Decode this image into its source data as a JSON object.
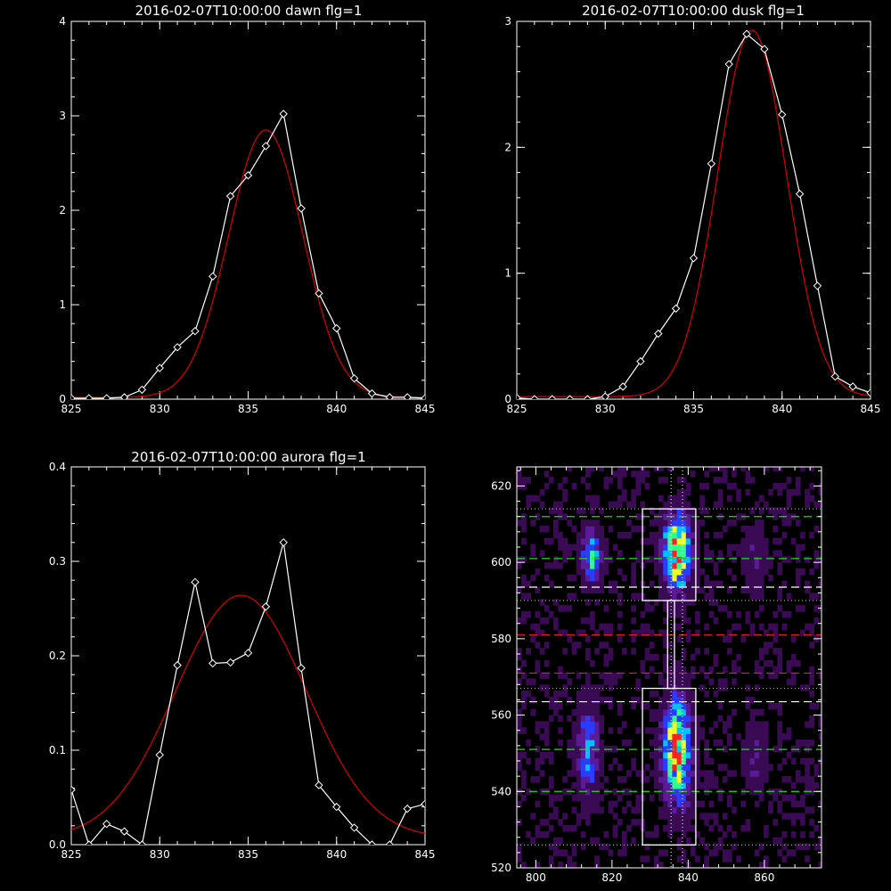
{
  "chart_data": [
    {
      "id": "dawn",
      "type": "line",
      "title": "2016-02-07T10:00:00 dawn flg=1",
      "xlim": [
        825,
        845
      ],
      "ylim": [
        0,
        4
      ],
      "xticks": [
        825,
        830,
        835,
        840,
        845
      ],
      "yticks": [
        0,
        1,
        2,
        3,
        4
      ],
      "series": [
        {
          "style": "observed",
          "color": "#ffffff",
          "marker": "diamond",
          "x": [
            825,
            826,
            827,
            828,
            829,
            830,
            831,
            832,
            833,
            834,
            835,
            836,
            837,
            838,
            839,
            840,
            841,
            842,
            843,
            844,
            845
          ],
          "y": [
            0.01,
            0.01,
            0.01,
            0.02,
            0.1,
            0.33,
            0.55,
            0.72,
            1.3,
            2.15,
            2.37,
            2.68,
            3.02,
            2.02,
            1.12,
            0.75,
            0.22,
            0.06,
            0.02,
            0.02,
            0.01
          ]
        },
        {
          "style": "fit",
          "color": "#cc0000",
          "gaussian": {
            "amp": 2.83,
            "mu": 836.0,
            "sigma": 2.1,
            "offset": 0.02
          }
        }
      ]
    },
    {
      "id": "dusk",
      "type": "line",
      "title": "2016-02-07T10:00:00 dusk flg=1",
      "xlim": [
        825,
        845
      ],
      "ylim": [
        0,
        3
      ],
      "xticks": [
        825,
        830,
        835,
        840,
        845
      ],
      "yticks": [
        0,
        1,
        2,
        3
      ],
      "series": [
        {
          "style": "observed",
          "color": "#ffffff",
          "marker": "diamond",
          "x": [
            825,
            826,
            827,
            828,
            829,
            830,
            831,
            832,
            833,
            834,
            835,
            836,
            837,
            838,
            839,
            840,
            841,
            842,
            843,
            844,
            845
          ],
          "y": [
            0.01,
            0.0,
            0.0,
            0.0,
            0.0,
            0.02,
            0.1,
            0.3,
            0.52,
            0.72,
            1.12,
            1.87,
            2.66,
            2.9,
            2.78,
            2.26,
            1.63,
            0.9,
            0.18,
            0.1,
            0.05
          ]
        },
        {
          "style": "fit",
          "color": "#cc0000",
          "gaussian": {
            "amp": 2.91,
            "mu": 838.3,
            "sigma": 1.95,
            "offset": 0.02
          }
        }
      ]
    },
    {
      "id": "aurora",
      "type": "line",
      "title": "2016-02-07T10:00:00 aurora flg=1",
      "xlim": [
        825,
        845
      ],
      "ylim": [
        0,
        0.4
      ],
      "xticks": [
        825,
        830,
        835,
        840,
        845
      ],
      "yticks": [
        0.0,
        0.1,
        0.2,
        0.3,
        0.4
      ],
      "series": [
        {
          "style": "observed",
          "color": "#ffffff",
          "marker": "diamond",
          "x": [
            825,
            826,
            827,
            828,
            829,
            830,
            831,
            832,
            833,
            834,
            835,
            836,
            837,
            838,
            839,
            840,
            841,
            842,
            843,
            844,
            845
          ],
          "y": [
            0.058,
            0.0,
            0.022,
            0.014,
            0.0,
            0.095,
            0.19,
            0.278,
            0.192,
            0.193,
            0.203,
            0.252,
            0.32,
            0.187,
            0.063,
            0.04,
            0.018,
            0.0,
            0.0,
            0.038,
            0.043
          ]
        },
        {
          "style": "fit",
          "color": "#cc0000",
          "gaussian": {
            "amp": 0.257,
            "mu": 834.6,
            "sigma": 3.7,
            "offset": 0.007
          }
        }
      ]
    },
    {
      "id": "image",
      "type": "heatmap",
      "title": "",
      "xlim": [
        795,
        875
      ],
      "ylim": [
        520,
        625
      ],
      "xticks": [
        800,
        820,
        840,
        860
      ],
      "yticks": [
        520,
        540,
        560,
        580,
        600,
        620
      ],
      "colormap": [
        "#000000",
        "#3a0a55",
        "#5a1a9a",
        "#2a3cff",
        "#00c0ff",
        "#30ff90",
        "#f0ff20",
        "#ff2020"
      ],
      "sources": [
        {
          "x": 836.5,
          "y": 602,
          "sx": 2.6,
          "sy": 7,
          "amp": 0.95
        },
        {
          "x": 836.5,
          "y": 550,
          "sx": 2.6,
          "sy": 10,
          "amp": 0.85
        },
        {
          "x": 814,
          "y": 601,
          "sx": 2.0,
          "sy": 5,
          "amp": 0.55
        },
        {
          "x": 813,
          "y": 550,
          "sx": 2.0,
          "sy": 9,
          "amp": 0.48
        },
        {
          "x": 857,
          "y": 600,
          "sx": 2.2,
          "sy": 6,
          "amp": 0.22
        },
        {
          "x": 857,
          "y": 548,
          "sx": 2.2,
          "sy": 8,
          "amp": 0.2
        }
      ],
      "boxes": [
        {
          "x": [
            828,
            842
          ],
          "y": [
            590,
            614
          ]
        },
        {
          "x": [
            828,
            842
          ],
          "y": [
            526,
            567
          ]
        },
        {
          "x": [
            834.6,
            836.4
          ],
          "y": [
            567,
            590
          ]
        }
      ],
      "hlines": [
        {
          "y": 612,
          "color": "#22dd22",
          "dash": "long"
        },
        {
          "y": 601,
          "color": "#22dd22",
          "dash": "long"
        },
        {
          "y": 593.5,
          "color": "#ffffff",
          "dash": "long"
        },
        {
          "y": 581,
          "color": "#dd2222",
          "dash": "long"
        },
        {
          "y": 571,
          "color": "#dd2222",
          "dash": "long"
        },
        {
          "y": 563.5,
          "color": "#ffffff",
          "dash": "long"
        },
        {
          "y": 551,
          "color": "#22dd22",
          "dash": "long"
        },
        {
          "y": 540,
          "color": "#22dd22",
          "dash": "long"
        },
        {
          "y": 614,
          "color": "#aaaaaa",
          "dash": "dot"
        },
        {
          "y": 590,
          "color": "#aaaaaa",
          "dash": "dot"
        },
        {
          "y": 567,
          "color": "#aaaaaa",
          "dash": "dot"
        },
        {
          "y": 526,
          "color": "#aaaaaa",
          "dash": "dot"
        }
      ],
      "vlines": [
        {
          "x": 835.5,
          "color": "#ffffff",
          "dash": "dot"
        },
        {
          "x": 838.5,
          "color": "#ffffff",
          "dash": "dot"
        }
      ]
    }
  ]
}
